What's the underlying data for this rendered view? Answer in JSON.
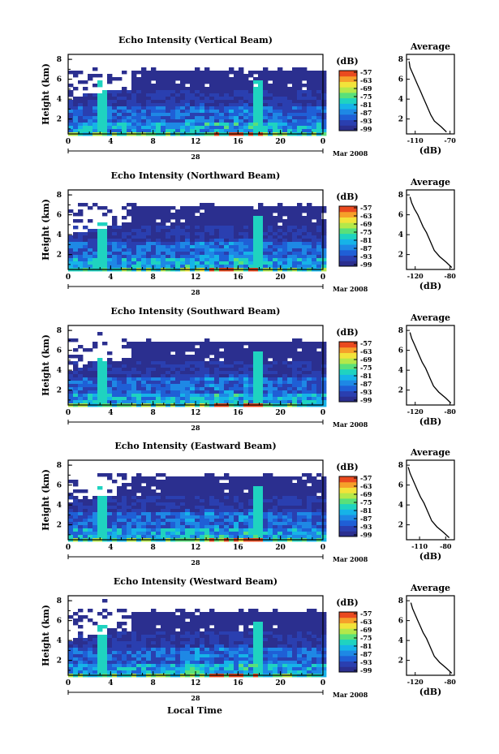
{
  "figure": {
    "xlabel": "Local Time",
    "date_label": "Mar 2008",
    "day_label": "28",
    "colorbar_unit": "(dB)",
    "average_title": "Average",
    "average_xlabel": "(dB)"
  },
  "palette": [
    "#2b2f8f",
    "#2a3fb0",
    "#1f5fd6",
    "#1e88e5",
    "#16b3e8",
    "#1fd3c0",
    "#59e07a",
    "#b4e84a",
    "#f2e33a",
    "#f6a02a",
    "#ea4a1f"
  ],
  "chart_data": [
    {
      "type": "heatmap",
      "title": "Echo Intensity (Vertical Beam)",
      "ylabel": "Height (km)",
      "x_ticks": [
        "0",
        "4",
        "8",
        "12",
        "16",
        "20",
        "0"
      ],
      "xlim": [
        0,
        24
      ],
      "y_ticks": [
        "2",
        "4",
        "6",
        "8"
      ],
      "ylim": [
        0.5,
        8.5
      ],
      "colorbar_ticks": [
        "-57",
        "-63",
        "-69",
        "-75",
        "-81",
        "-87",
        "-93",
        "-99"
      ],
      "average": {
        "title": "Average",
        "xlabel": "(dB)",
        "x_ticks": [
          "-110",
          "-70"
        ],
        "xlim": [
          -120,
          -65
        ],
        "y_ticks": [
          "2",
          "4",
          "6",
          "8"
        ],
        "ylim": [
          0.5,
          8.5
        ],
        "x": [
          -74,
          -80,
          -88,
          -92,
          -95,
          -98,
          -101,
          -104,
          -107,
          -110,
          -113,
          -116,
          -117
        ],
        "y": [
          0.7,
          1.2,
          1.8,
          2.4,
          3.0,
          3.6,
          4.2,
          4.8,
          5.4,
          6.0,
          6.6,
          7.2,
          7.8
        ]
      }
    },
    {
      "type": "heatmap",
      "title": "Echo Intensity (Northward Beam)",
      "ylabel": "Height (km)",
      "x_ticks": [
        "0",
        "4",
        "8",
        "12",
        "16",
        "20",
        "0"
      ],
      "xlim": [
        0,
        24
      ],
      "y_ticks": [
        "2",
        "4",
        "6",
        "8"
      ],
      "ylim": [
        0.5,
        8.5
      ],
      "colorbar_ticks": [
        "-57",
        "-63",
        "-69",
        "-75",
        "-81",
        "-87",
        "-93",
        "-99"
      ],
      "average": {
        "title": "Average",
        "xlabel": "(dB)",
        "x_ticks": [
          "-120",
          "-80"
        ],
        "xlim": [
          -130,
          -75
        ],
        "y_ticks": [
          "2",
          "4",
          "6",
          "8"
        ],
        "ylim": [
          0.5,
          8.5
        ],
        "x": [
          -78,
          -84,
          -92,
          -98,
          -101,
          -104,
          -107,
          -111,
          -114,
          -117,
          -121,
          -124,
          -126
        ],
        "y": [
          0.7,
          1.2,
          1.8,
          2.4,
          3.0,
          3.6,
          4.2,
          4.8,
          5.4,
          6.0,
          6.6,
          7.2,
          7.8
        ]
      }
    },
    {
      "type": "heatmap",
      "title": "Echo Intensity (Southward Beam)",
      "ylabel": "Height (km)",
      "x_ticks": [
        "0",
        "4",
        "8",
        "12",
        "16",
        "20",
        "0"
      ],
      "xlim": [
        0,
        24
      ],
      "y_ticks": [
        "2",
        "4",
        "6",
        "8"
      ],
      "ylim": [
        0.5,
        8.5
      ],
      "colorbar_ticks": [
        "-57",
        "-63",
        "-69",
        "-75",
        "-81",
        "-87",
        "-93",
        "-99"
      ],
      "average": {
        "title": "Average",
        "xlabel": "(dB)",
        "x_ticks": [
          "-120",
          "-80"
        ],
        "xlim": [
          -130,
          -75
        ],
        "y_ticks": [
          "2",
          "4",
          "6",
          "8"
        ],
        "ylim": [
          0.5,
          8.5
        ],
        "x": [
          -79,
          -85,
          -93,
          -99,
          -102,
          -105,
          -108,
          -112,
          -115,
          -118,
          -121,
          -124,
          -126
        ],
        "y": [
          0.7,
          1.2,
          1.8,
          2.4,
          3.0,
          3.6,
          4.2,
          4.8,
          5.4,
          6.0,
          6.6,
          7.2,
          7.8
        ]
      }
    },
    {
      "type": "heatmap",
      "title": "Echo Intensity (Eastward Beam)",
      "ylabel": "Height (km)",
      "x_ticks": [
        "0",
        "4",
        "8",
        "12",
        "16",
        "20",
        "0"
      ],
      "xlim": [
        0,
        24
      ],
      "y_ticks": [
        "2",
        "4",
        "6",
        "8"
      ],
      "ylim": [
        0.5,
        8.5
      ],
      "colorbar_ticks": [
        "-57",
        "-63",
        "-69",
        "-75",
        "-81",
        "-87",
        "-93",
        "-99"
      ],
      "average": {
        "title": "Average",
        "xlabel": "(dB)",
        "x_ticks": [
          "-110",
          "-80"
        ],
        "xlim": [
          -125,
          -70
        ],
        "y_ticks": [
          "2",
          "4",
          "6",
          "8"
        ],
        "ylim": [
          0.5,
          8.5
        ],
        "x": [
          -76,
          -82,
          -90,
          -96,
          -99,
          -102,
          -105,
          -109,
          -112,
          -115,
          -118,
          -121,
          -123
        ],
        "y": [
          0.7,
          1.2,
          1.8,
          2.4,
          3.0,
          3.6,
          4.2,
          4.8,
          5.4,
          6.0,
          6.6,
          7.2,
          7.8
        ]
      }
    },
    {
      "type": "heatmap",
      "title": "Echo Intensity (Westward Beam)",
      "ylabel": "Height (km)",
      "x_ticks": [
        "0",
        "4",
        "8",
        "12",
        "16",
        "20",
        "0"
      ],
      "xlim": [
        0,
        24
      ],
      "y_ticks": [
        "2",
        "4",
        "6",
        "8"
      ],
      "ylim": [
        0.5,
        8.5
      ],
      "colorbar_ticks": [
        "-57",
        "-63",
        "-69",
        "-75",
        "-81",
        "-87",
        "-93",
        "-99"
      ],
      "average": {
        "title": "Average",
        "xlabel": "(dB)",
        "x_ticks": [
          "-120",
          "-80"
        ],
        "xlim": [
          -130,
          -75
        ],
        "y_ticks": [
          "2",
          "4",
          "6",
          "8"
        ],
        "ylim": [
          0.5,
          8.5
        ],
        "x": [
          -78,
          -84,
          -92,
          -98,
          -101,
          -104,
          -107,
          -111,
          -114,
          -117,
          -120,
          -123,
          -125
        ],
        "y": [
          0.7,
          1.2,
          1.8,
          2.4,
          3.0,
          3.6,
          4.2,
          4.8,
          5.4,
          6.0,
          6.6,
          7.2,
          7.8
        ]
      }
    }
  ]
}
